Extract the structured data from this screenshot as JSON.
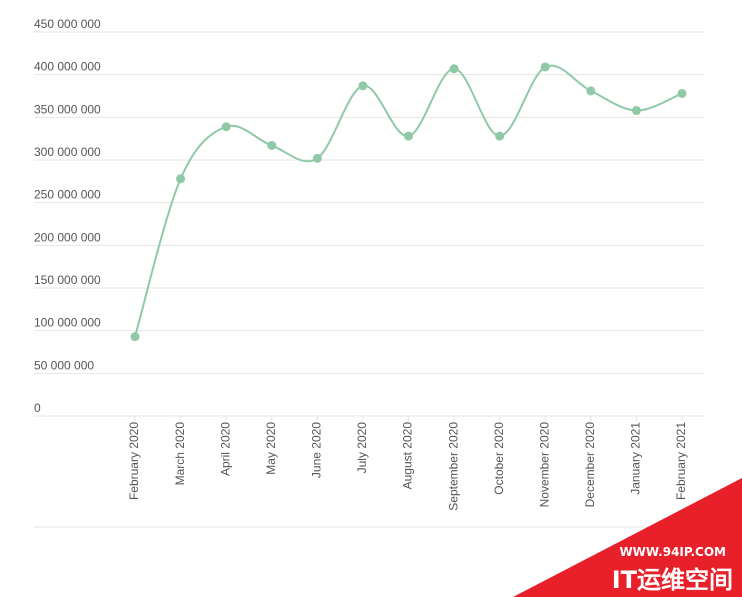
{
  "chart_data": {
    "type": "line",
    "title": "",
    "xlabel": "",
    "ylabel": "",
    "categories": [
      "February 2020",
      "March 2020",
      "April 2020",
      "May 2020",
      "June 2020",
      "July 2020",
      "August 2020",
      "September 2020",
      "October 2020",
      "November 2020",
      "December 2020",
      "January 2021",
      "February 2021"
    ],
    "series": [
      {
        "name": "",
        "values": [
          93000000,
          278000000,
          339000000,
          317000000,
          302000000,
          387000000,
          328000000,
          407000000,
          328000000,
          409000000,
          381000000,
          358000000,
          378000000
        ]
      }
    ],
    "ylim": [
      0,
      450000000
    ],
    "ytick_values": [
      0,
      50000000,
      100000000,
      150000000,
      200000000,
      250000000,
      300000000,
      350000000,
      400000000,
      450000000
    ],
    "ytick_labels": [
      "0",
      "50 000 000",
      "100 000 000",
      "150 000 000",
      "200 000 000",
      "250 000 000",
      "300 000 000",
      "350 000 000",
      "400 000 000",
      "450 000 000"
    ],
    "grid": true,
    "curve": "smooth",
    "colors": {
      "line": "#8fc9a8",
      "marker": "#8fc9a8",
      "grid": "#e5e5e5",
      "tick_text": "#555555"
    }
  },
  "watermark": {
    "url": "WWW.94IP.COM",
    "brand": "IT运维空间",
    "color": "#e8202a"
  }
}
